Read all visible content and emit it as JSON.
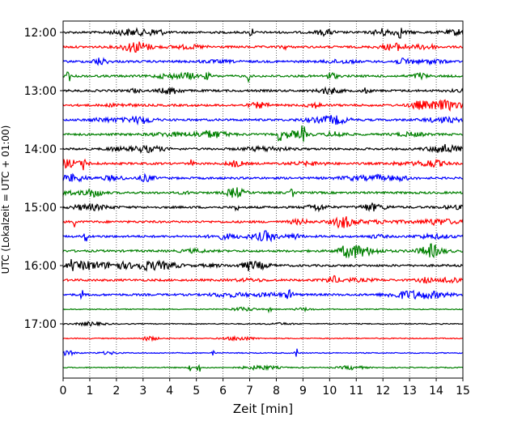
{
  "chart_data": {
    "type": "line",
    "title": "",
    "xlabel": "Zeit  [min]",
    "ylabel": "UTC (Lokalzeit = UTC + 01:00)",
    "xlim": [
      0,
      15
    ],
    "x_ticks": [
      "0",
      "1",
      "2",
      "3",
      "4",
      "5",
      "6",
      "7",
      "8",
      "9",
      "10",
      "11",
      "12",
      "13",
      "14",
      "15"
    ],
    "y_ticks": [
      "12:00",
      "13:00",
      "14:00",
      "15:00",
      "16:00",
      "17:00"
    ],
    "grid": "vertical dotted",
    "legend": "none",
    "trace_colors": [
      "#000000",
      "#ff0000",
      "#0000ff",
      "#008000"
    ],
    "traces": [
      {
        "start": "12:00",
        "color": "#000000"
      },
      {
        "start": "12:15",
        "color": "#ff0000"
      },
      {
        "start": "12:30",
        "color": "#0000ff"
      },
      {
        "start": "12:45",
        "color": "#008000"
      },
      {
        "start": "13:00",
        "color": "#000000"
      },
      {
        "start": "13:15",
        "color": "#ff0000"
      },
      {
        "start": "13:30",
        "color": "#0000ff"
      },
      {
        "start": "13:45",
        "color": "#008000"
      },
      {
        "start": "14:00",
        "color": "#000000"
      },
      {
        "start": "14:15",
        "color": "#ff0000"
      },
      {
        "start": "14:30",
        "color": "#0000ff"
      },
      {
        "start": "14:45",
        "color": "#008000"
      },
      {
        "start": "15:00",
        "color": "#000000"
      },
      {
        "start": "15:15",
        "color": "#ff0000"
      },
      {
        "start": "15:30",
        "color": "#0000ff"
      },
      {
        "start": "15:45",
        "color": "#008000"
      },
      {
        "start": "16:00",
        "color": "#000000"
      },
      {
        "start": "16:15",
        "color": "#ff0000"
      },
      {
        "start": "16:30",
        "color": "#0000ff"
      },
      {
        "start": "16:45",
        "color": "#008000"
      },
      {
        "start": "17:00",
        "color": "#000000"
      },
      {
        "start": "17:15",
        "color": "#ff0000"
      },
      {
        "start": "17:30",
        "color": "#0000ff"
      },
      {
        "start": "17:45",
        "color": "#008000"
      }
    ]
  }
}
